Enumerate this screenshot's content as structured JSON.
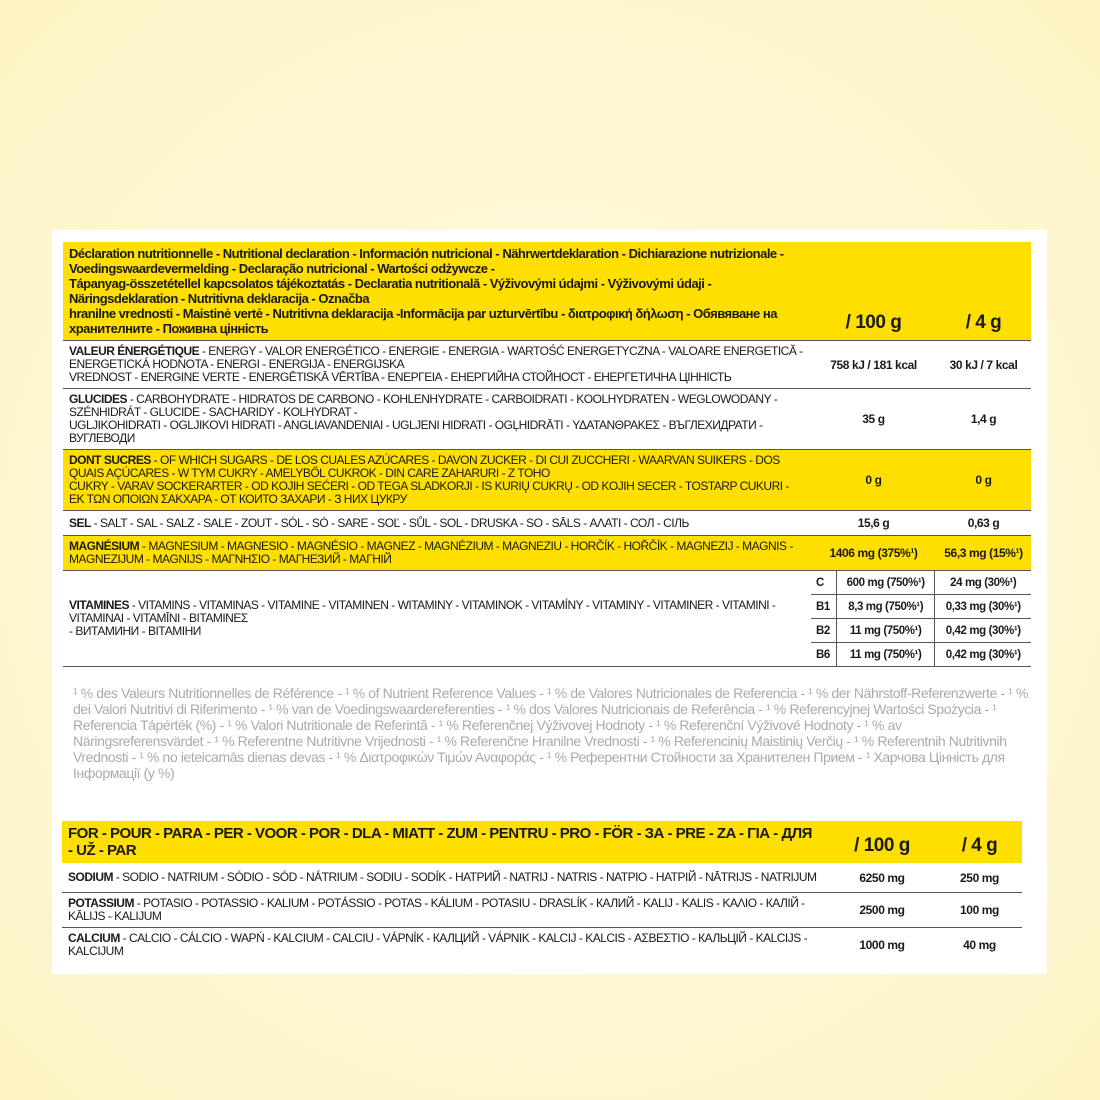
{
  "declaration": {
    "title_lines": [
      "Déclaration nutritionnelle - Nutritional declaration - Información nutricional - Nährwertdeklaration - Dichiarazione nutrizionale - Voedingswaardevermelding - Declaração nutricional - Wartości odżywcze -",
      "Tápanyag-összetétellel kapcsolatos tájékoztatás - Declaratia nutritională - Výživovými údajmi - Výživovými údaji - Näringsdeklaration - Nutritivna deklaracija - Označba",
      "hranilne vrednosti - Maistinė vertė - Nutritivna deklaracija -Informācija par uzturvērtību - διατροφική δήλωση - Обявяване на хранителните - Поживна цінність"
    ],
    "col_100g": "/ 100 g",
    "col_4g": "/ 4 g",
    "rows": [
      {
        "head": "VALEUR ÉNERGÉTIQUE",
        "lines": [
          " - ENERGY - VALOR ENERGÉTICO - ENERGIE - ENERGIA - WARTOŚĆ ENERGETYCZNA - VALOARE ENERGETICĂ - ENERGETICKÁ HODNOTA - ENERGI - ENERGIJA - ENERGIJSKA",
          "VREDNOST - ENERGINE VERTE - ENERGĒTISKĀ VĒRTĪBA - ΕΝΕΡΓΕΙΑ - ЕНЕРГИЙНА СТОЙНОСТ - ЕНЕРГЕТИЧНА ЦІННІСТЬ"
        ],
        "v100": "758 kJ / 181 kcal",
        "v4": "30 kJ / 7 kcal"
      },
      {
        "head": "GLUCIDES",
        "lines": [
          " - CARBOHYDRATE - HIDRATOS DE CARBONO - KOHLENHYDRATE - CARBOIDRATI - KOOLHYDRATEN - WEGLOWODANY - SZÉNHIDRÁT - GLUCIDE - SACHARIDY - KOLHYDRAT -",
          "UGLJIKOHIDRATI - OGLJIKOVI HIDRATI - ANGLIAVANDENIAI - UGLJENI HIDRATI - OGĻHIDRĀTI - ΥΔΑΤΑΝΘΡΑΚΕΣ - ВЪГЛЕХИДРАТИ - ВУГЛЕВОДИ"
        ],
        "v100": "35 g",
        "v4": "1,4 g"
      },
      {
        "head": "DONT SUCRES",
        "lines": [
          " - OF WHICH SUGARS - DE LOS CUALES AZÚCARES - DAVON ZUCKER - DI CUI ZUCCHERI - WAARVAN SUIKERS - DOS QUAIS AÇÚCARES - W TYM CUKRY - AMELYBŐL CUKROK - DIN CARE ZAHARURI - Z TOHO",
          "CUKRY - VARAV SOCKERARTER - OD KOJIH SEĆERI - OD TEGA SLADKORJI - IS KURIŲ CUKRŲ - OD KOJIH SECER - TOSTARP CUKURI - ΕΚ ΤΩΝ ΟΠΟΙΩΝ ΣΑΚΧΑΡΑ - ОТ КОИТО ЗАХАРИ - З НИХ ЦУКРУ"
        ],
        "v100": "0 g",
        "v4": "0 g"
      },
      {
        "head": "SEL",
        "lines": [
          " - SALT - SAL - SALZ - SALE - ZOUT - SÓL - SÓ - SARE - SOĽ - SŮL - SOL - DRUSKA - SO - SĀLS - ΑΛΑΤΙ - СОЛ - СІЛЬ"
        ],
        "v100": "15,6 g",
        "v4": "0,63 g"
      },
      {
        "head": "MAGNÉSIUM",
        "lines": [
          " - MAGNESIUM - MAGNESIO - MAGNÉSIO - MAGNEZ - MAGNÉZIUM - MAGNEZIU - HORČÍK - HOŘČÍK - MAGNEZIJ - MAGNIS - MAGNEZIJUM - MAGNIJS - ΜΑΓΝΗΣΙΟ - МАГНЕЗИЙ - МАГНІЙ"
        ],
        "v100": "1406 mg (375%¹)",
        "v4": "56,3 mg (15%¹)"
      }
    ],
    "vitamins": {
      "head": "VITAMINES",
      "lines": [
        " - VITAMINS - VITAMINAS - VITAMINE - VITAMINEN - WITAMINY - VITAMINOK - VITAMÍNY - VITAMINY - VITAMINER - VITAMINI - VITAMINAI - VITAMĪNI - ΒΙΤΑΜΙΝΕΣ",
        "- ВИТАМИНИ - ВІТАМІНИ"
      ],
      "items": [
        {
          "name": "C",
          "v100": "600 mg (750%¹)",
          "v4": "24 mg (30%¹)"
        },
        {
          "name": "B1",
          "v100": "8,3 mg (750%¹)",
          "v4": "0,33 mg (30%¹)"
        },
        {
          "name": "B2",
          "v100": "11 mg (750%¹)",
          "v4": "0,42 mg (30%¹)"
        },
        {
          "name": "B6",
          "v100": "11 mg (750%¹)",
          "v4": "0,42 mg (30%¹)"
        }
      ]
    }
  },
  "footnote_lines": [
    "¹ % des Valeurs Nutritionnelles de Référence - ¹ % of Nutrient Reference Values - ¹ % de Valores Nutricionales de Referencia - ¹ % der Nährstoff-Referenzwerte - ¹ % dei Valori Nutritivi di Riferimento - ¹ %",
    "van de Voedingswaardereferenties - ¹ % dos Valores Nutricionais de Referência - ¹ % Referencyjnej Wartości Spożycia - ¹ Referencia Tápérték (%) - ¹ % Valori Nutritionale de Referintă - ¹ % Referenčnej",
    "Výživovej Hodnoty - ¹ % Referenční Výživové Hodnoty - ¹ % av Näringsreferensvärdet - ¹ % Referentne Nutritivne Vrijednosti - ¹ % Referenčne Hranilne Vrednosti - ¹ % Referencinių Maistinių Verčių - ¹ %",
    "Referentnih Nutritivnih Vrednosti - ¹ % no ieteicamās dienas devas - ¹ % Διατροφικών Τιμών Αναφοράς - ¹ % Референтни Стойности за Хранителен Прием - ¹ Харчова Цінність для Інформації (у %)"
  ],
  "per_table": {
    "title": "FOR - POUR - PARA - PER - VOOR - POR - DLA - MIATT - ZUM - PENTRU - PRO - FÖR - ЗА - PRE - ZA - ΓΙΑ - ДЛЯ - UŽ - PAR",
    "col_100g": "/ 100 g",
    "col_4g": "/ 4 g",
    "rows": [
      {
        "head": "SODIUM",
        "rest": " - SODIO - NATRIUM - SÓDIO - SÓD - NÁTRIUM - SODIU - SODÍK - НАТРИЙ - NATRIJ - NATRIS - ΝΑΤΡΙΟ - НАТРІЙ - NĀTRIJS - NATRIJUM",
        "v100": "6250 mg",
        "v4": "250 mg"
      },
      {
        "head": "POTASSIUM",
        "rest": " - POTASIO - POTASSIO - KALIUM - POTÁSSIO - POTAS - KÁLIUM - POTASIU - DRASLÍK - КАЛИЙ - KALIJ - KALIS - ΚΑΛΙΟ - КАЛІЙ - KĀLIJS - KALIJUM",
        "v100": "2500 mg",
        "v4": "100 mg"
      },
      {
        "head": "CALCIUM",
        "rest": " - CALCIO - CÁLCIO - WAPŃ - KALCIUM - CALCIU - VÁPNÍK - КАЛЦИЙ - VÁPNIK - KALCIJ - KALCIS - ΑΣΒΕΣΤΙΟ - КАЛЬЦІЙ - KALCIJS - KALCIJUM",
        "v100": "1000 mg",
        "v4": "40 mg"
      }
    ]
  },
  "colors": {
    "accent_yellow": "#ffdf00",
    "background": "#fdf3c4",
    "footnote_gray": "#aaaaaa"
  }
}
